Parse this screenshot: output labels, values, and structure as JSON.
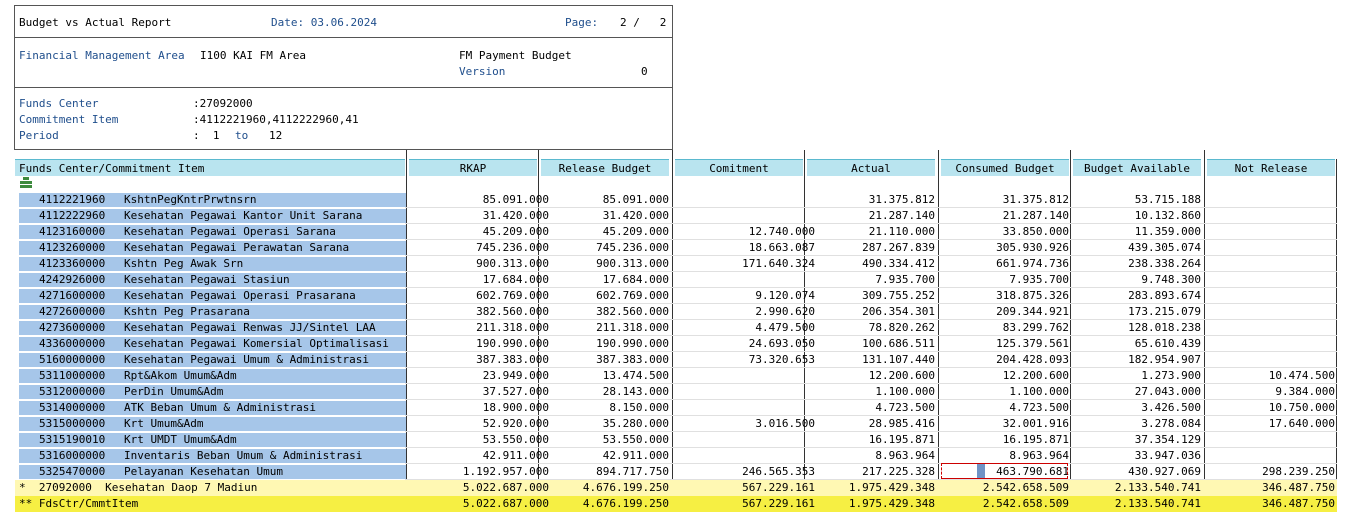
{
  "report": {
    "title": "Budget vs Actual Report",
    "date_label": "Date: 03.06.2024",
    "page_label": "Page:",
    "page_value": "2 /   2"
  },
  "area": {
    "label": "Financial Management Area",
    "value": "I100 KAI FM Area",
    "budget_label": "FM Payment Budget",
    "version_label": "Version",
    "version_value": "0"
  },
  "filters": {
    "funds_center_label": "Funds Center",
    "funds_center_value": ":27092000",
    "commitment_item_label": "Commitment Item",
    "commitment_item_value": ":4112221960,4112222960,41",
    "period_label": "Period",
    "period_from": ":  1",
    "period_to_label": "to",
    "period_to": "12"
  },
  "columns": [
    "Funds Center/Commitment Item",
    "RKAP",
    "Release Budget",
    "Comitment",
    "Actual",
    "Consumed Budget",
    "Budget Available",
    "Not Release"
  ],
  "rows": [
    {
      "code": "4112221960",
      "name": "KshtnPegKntrPrwtnsrn",
      "rkap": "85.091.000",
      "release": "85.091.000",
      "comit": "",
      "actual": "31.375.812",
      "consumed": "31.375.812",
      "available": "53.715.188",
      "not_release": ""
    },
    {
      "code": "4112222960",
      "name": "Kesehatan Pegawai Kantor Unit Sarana",
      "rkap": "31.420.000",
      "release": "31.420.000",
      "comit": "",
      "actual": "21.287.140",
      "consumed": "21.287.140",
      "available": "10.132.860",
      "not_release": ""
    },
    {
      "code": "4123160000",
      "name": "Kesehatan Pegawai Operasi Sarana",
      "rkap": "45.209.000",
      "release": "45.209.000",
      "comit": "12.740.000",
      "actual": "21.110.000",
      "consumed": "33.850.000",
      "available": "11.359.000",
      "not_release": ""
    },
    {
      "code": "4123260000",
      "name": "Kesehatan Pegawai Perawatan Sarana",
      "rkap": "745.236.000",
      "release": "745.236.000",
      "comit": "18.663.087",
      "actual": "287.267.839",
      "consumed": "305.930.926",
      "available": "439.305.074",
      "not_release": ""
    },
    {
      "code": "4123360000",
      "name": "Kshtn Peg Awak Srn",
      "rkap": "900.313.000",
      "release": "900.313.000",
      "comit": "171.640.324",
      "actual": "490.334.412",
      "consumed": "661.974.736",
      "available": "238.338.264",
      "not_release": ""
    },
    {
      "code": "4242926000",
      "name": "Kesehatan Pegawai Stasiun",
      "rkap": "17.684.000",
      "release": "17.684.000",
      "comit": "",
      "actual": "7.935.700",
      "consumed": "7.935.700",
      "available": "9.748.300",
      "not_release": ""
    },
    {
      "code": "4271600000",
      "name": "Kesehatan Pegawai Operasi Prasarana",
      "rkap": "602.769.000",
      "release": "602.769.000",
      "comit": "9.120.074",
      "actual": "309.755.252",
      "consumed": "318.875.326",
      "available": "283.893.674",
      "not_release": ""
    },
    {
      "code": "4272600000",
      "name": "Kshtn Peg Prasarana",
      "rkap": "382.560.000",
      "release": "382.560.000",
      "comit": "2.990.620",
      "actual": "206.354.301",
      "consumed": "209.344.921",
      "available": "173.215.079",
      "not_release": ""
    },
    {
      "code": "4273600000",
      "name": "Kesehatan Pegawai Renwas JJ/Sintel LAA",
      "rkap": "211.318.000",
      "release": "211.318.000",
      "comit": "4.479.500",
      "actual": "78.820.262",
      "consumed": "83.299.762",
      "available": "128.018.238",
      "not_release": ""
    },
    {
      "code": "4336000000",
      "name": "Kesehatan Pegawai Komersial Optimalisasi",
      "rkap": "190.990.000",
      "release": "190.990.000",
      "comit": "24.693.050",
      "actual": "100.686.511",
      "consumed": "125.379.561",
      "available": "65.610.439",
      "not_release": ""
    },
    {
      "code": "5160000000",
      "name": "Kesehatan Pegawai Umum & Administrasi",
      "rkap": "387.383.000",
      "release": "387.383.000",
      "comit": "73.320.653",
      "actual": "131.107.440",
      "consumed": "204.428.093",
      "available": "182.954.907",
      "not_release": ""
    },
    {
      "code": "5311000000",
      "name": "Rpt&Akom Umum&Adm",
      "rkap": "23.949.000",
      "release": "13.474.500",
      "comit": "",
      "actual": "12.200.600",
      "consumed": "12.200.600",
      "available": "1.273.900",
      "not_release": "10.474.500"
    },
    {
      "code": "5312000000",
      "name": "PerDin Umum&Adm",
      "rkap": "37.527.000",
      "release": "28.143.000",
      "comit": "",
      "actual": "1.100.000",
      "consumed": "1.100.000",
      "available": "27.043.000",
      "not_release": "9.384.000"
    },
    {
      "code": "5314000000",
      "name": "ATK Beban Umum & Administrasi",
      "rkap": "18.900.000",
      "release": "8.150.000",
      "comit": "",
      "actual": "4.723.500",
      "consumed": "4.723.500",
      "available": "3.426.500",
      "not_release": "10.750.000"
    },
    {
      "code": "5315000000",
      "name": "Krt Umum&Adm",
      "rkap": "52.920.000",
      "release": "35.280.000",
      "comit": "3.016.500",
      "actual": "28.985.416",
      "consumed": "32.001.916",
      "available": "3.278.084",
      "not_release": "17.640.000"
    },
    {
      "code": "5315190010",
      "name": "Krt UMDT Umum&Adm",
      "rkap": "53.550.000",
      "release": "53.550.000",
      "comit": "",
      "actual": "16.195.871",
      "consumed": "16.195.871",
      "available": "37.354.129",
      "not_release": ""
    },
    {
      "code": "5316000000",
      "name": "Inventaris Beban Umum & Administrasi",
      "rkap": "42.911.000",
      "release": "42.911.000",
      "comit": "",
      "actual": "8.963.964",
      "consumed": "8.963.964",
      "available": "33.947.036",
      "not_release": ""
    },
    {
      "code": "5325470000",
      "name": "Pelayanan Kesehatan Umum",
      "rkap": "1.192.957.000",
      "release": "894.717.750",
      "comit": "246.565.353",
      "actual": "217.225.328",
      "consumed": "463.790.681",
      "available": "430.927.069",
      "not_release": "298.239.250"
    }
  ],
  "totals": [
    {
      "label": "*  27092000  Kesehatan Daop 7 Madiun",
      "rkap": "5.022.687.000",
      "release": "4.676.199.250",
      "comit": "567.229.161",
      "actual": "1.975.429.348",
      "consumed": "2.542.658.509",
      "available": "2.133.540.741",
      "not_release": "346.487.750"
    },
    {
      "label": "** FdsCtr/CmmtItem",
      "rkap": "5.022.687.000",
      "release": "4.676.199.250",
      "comit": "567.229.161",
      "actual": "1.975.429.348",
      "consumed": "2.542.658.509",
      "available": "2.133.540.741",
      "not_release": "346.487.750"
    }
  ],
  "colors": {
    "header_bg": "#b9e4ef",
    "label_bg": "#a6c6e9",
    "total1_bg": "#fff8b3",
    "total2_bg": "#f6ef43",
    "text_blue": "#1f4e8c"
  }
}
